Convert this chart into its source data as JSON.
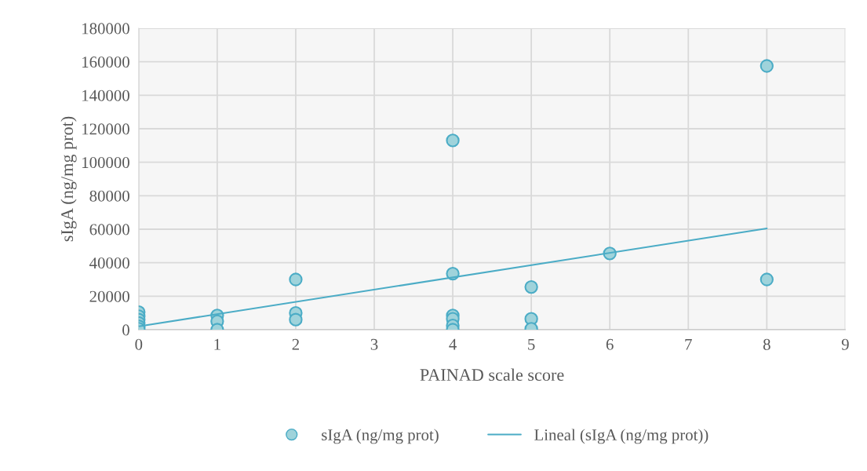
{
  "chart_data": {
    "type": "scatter",
    "xlabel": "PAINAD scale score",
    "ylabel": "sIgA (ng/mg prot)",
    "xlim": [
      0,
      9
    ],
    "xticks": [
      0,
      1,
      2,
      3,
      4,
      5,
      6,
      7,
      8,
      9
    ],
    "ylim": [
      0,
      180000
    ],
    "yticks": [
      0,
      20000,
      40000,
      60000,
      80000,
      100000,
      120000,
      140000,
      160000,
      180000
    ],
    "grid": true,
    "legend": "bottom",
    "series": [
      {
        "name": "sIgA (ng/mg prot)",
        "marker": "circle",
        "color": "#9fd3db",
        "x": [
          0,
          0,
          0,
          0,
          0,
          0,
          1,
          1,
          1,
          2,
          2,
          2,
          4,
          4,
          4,
          4,
          4,
          4,
          5,
          5,
          5,
          6,
          8,
          8
        ],
        "values": [
          10500,
          8000,
          6000,
          4000,
          2000,
          500,
          8500,
          5000,
          0,
          30000,
          10000,
          6000,
          113000,
          33500,
          8500,
          6500,
          2500,
          0,
          25500,
          6500,
          500,
          45500,
          157500,
          30000
        ]
      },
      {
        "name": "Lineal (sIgA (ng/mg prot))",
        "type": "line",
        "color": "#4bacc6",
        "x": [
          0,
          8
        ],
        "values": [
          2000,
          60500
        ],
        "line_style": "solid",
        "marker": "none"
      }
    ]
  }
}
